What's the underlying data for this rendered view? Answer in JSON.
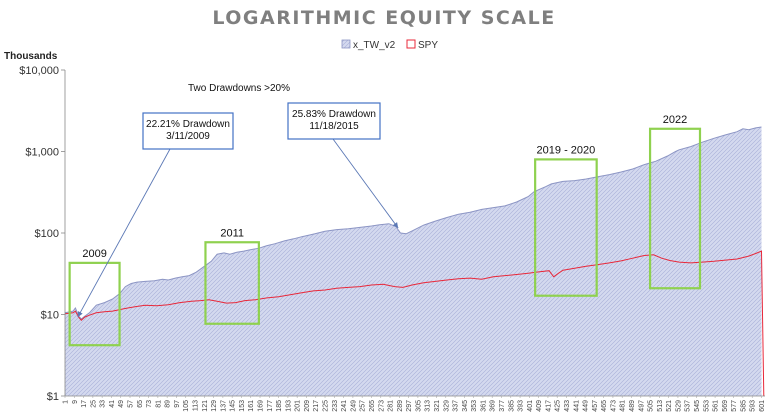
{
  "chart_data": {
    "type": "area",
    "title": "LOGARITHMIC EQUITY SCALE",
    "ylabel": "Thousands",
    "xlabel": "",
    "yscale": "log",
    "ylim": [
      1,
      10000
    ],
    "yticks": [
      1,
      10,
      100,
      1000,
      10000
    ],
    "ytick_labels": [
      "$1",
      "$10",
      "$100",
      "$1,000",
      "$10,000"
    ],
    "xlim": [
      1,
      604
    ],
    "xticks": [
      1,
      9,
      17,
      25,
      33,
      41,
      49,
      57,
      65,
      73,
      81,
      89,
      97,
      105,
      113,
      121,
      129,
      137,
      145,
      153,
      161,
      169,
      177,
      185,
      193,
      201,
      209,
      217,
      225,
      233,
      241,
      249,
      257,
      265,
      273,
      281,
      289,
      297,
      305,
      313,
      321,
      329,
      337,
      345,
      353,
      361,
      369,
      377,
      385,
      393,
      401,
      409,
      417,
      425,
      433,
      441,
      449,
      457,
      465,
      473,
      481,
      489,
      497,
      505,
      513,
      521,
      529,
      537,
      545,
      553,
      561,
      569,
      577,
      585,
      593,
      601
    ],
    "legend_position": "top",
    "grid": false,
    "series": [
      {
        "name": "x_TW_v2",
        "style": "area",
        "color": "#c6cce8",
        "edge_color": "#8c95c4",
        "x": [
          1,
          8,
          10,
          13,
          15,
          18,
          22,
          28,
          35,
          42,
          48,
          53,
          58,
          63,
          70,
          78,
          85,
          90,
          96,
          102,
          108,
          114,
          120,
          127,
          132,
          138,
          143,
          149,
          155,
          160,
          168,
          175,
          182,
          190,
          198,
          205,
          215,
          225,
          235,
          245,
          255,
          265,
          272,
          280,
          286,
          290,
          295,
          300,
          310,
          320,
          330,
          340,
          350,
          360,
          370,
          380,
          390,
          400,
          405,
          410,
          415,
          420,
          430,
          440,
          450,
          460,
          470,
          480,
          490,
          500,
          510,
          520,
          527,
          530,
          540,
          550,
          560,
          570,
          580,
          585,
          590,
          596,
          601
        ],
        "values": [
          10.5,
          11,
          12,
          9.5,
          8.8,
          9.5,
          10.5,
          13,
          14,
          15.5,
          18,
          22,
          24,
          25,
          25.5,
          26,
          27,
          26.5,
          28,
          29,
          30,
          33,
          38,
          45,
          55,
          57,
          55,
          58,
          60,
          62,
          65,
          70,
          74,
          80,
          85,
          90,
          97,
          105,
          110,
          113,
          117,
          122,
          126,
          130,
          120,
          100,
          98,
          106,
          125,
          140,
          155,
          170,
          180,
          195,
          205,
          215,
          240,
          280,
          320,
          345,
          370,
          400,
          430,
          440,
          460,
          490,
          520,
          560,
          610,
          690,
          760,
          880,
          1000,
          1050,
          1150,
          1300,
          1450,
          1600,
          1750,
          1900,
          1850,
          1950,
          2000
        ]
      },
      {
        "name": "SPY",
        "style": "line",
        "color": "#e8283a",
        "x": [
          1,
          8,
          10,
          13,
          15,
          18,
          22,
          28,
          35,
          42,
          48,
          55,
          62,
          70,
          80,
          90,
          100,
          110,
          118,
          125,
          132,
          140,
          148,
          156,
          165,
          175,
          185,
          195,
          205,
          215,
          225,
          235,
          245,
          255,
          265,
          275,
          285,
          292,
          300,
          310,
          320,
          330,
          340,
          350,
          360,
          370,
          380,
          390,
          400,
          410,
          418,
          422,
          426,
          430,
          440,
          450,
          460,
          470,
          480,
          490,
          500,
          508,
          515,
          522,
          530,
          540,
          550,
          560,
          570,
          580,
          590,
          596,
          601,
          603
        ],
        "values": [
          10.2,
          10.5,
          11,
          9.2,
          8.5,
          9.3,
          9.8,
          10.5,
          10.8,
          11,
          11.5,
          12,
          12.5,
          13,
          12.8,
          13.2,
          14,
          14.5,
          14.8,
          15.2,
          14.5,
          13.8,
          14,
          14.8,
          15.2,
          16,
          16.5,
          17.5,
          18.5,
          19.5,
          20,
          21,
          21.5,
          22,
          23,
          23.5,
          22,
          21.5,
          23,
          24.5,
          25.5,
          26.5,
          27.5,
          28,
          27,
          29,
          30,
          31,
          32,
          33.5,
          34.5,
          29,
          32,
          35,
          37,
          39,
          41,
          43,
          45.5,
          49,
          53,
          54,
          49,
          46,
          44,
          43,
          44,
          45,
          46.5,
          48,
          52,
          56,
          60,
          1
        ]
      }
    ],
    "annotations": [
      {
        "text": "Two Drawdowns >20%"
      },
      {
        "text": [
          "22.21% Drawdown",
          "3/11/2009"
        ],
        "arrow_to": [
          12,
          9.3
        ]
      },
      {
        "text": [
          "25.83% Drawdown",
          "11/18/2015"
        ],
        "arrow_to": [
          288,
          115
        ]
      }
    ],
    "highlight_boxes": [
      {
        "label": "2009",
        "x_range": [
          5,
          48
        ],
        "y_range": [
          4.2,
          43
        ],
        "color": "#8fd14f"
      },
      {
        "label": "2011",
        "x_range": [
          122,
          168
        ],
        "y_range": [
          7.7,
          77
        ],
        "color": "#8fd14f"
      },
      {
        "label": "2019 - 2020",
        "x_range": [
          406,
          459
        ],
        "y_range": [
          17,
          800
        ],
        "color": "#8fd14f"
      },
      {
        "label": "2022",
        "x_range": [
          505,
          548
        ],
        "y_range": [
          21,
          1900
        ],
        "color": "#8fd14f"
      }
    ]
  }
}
